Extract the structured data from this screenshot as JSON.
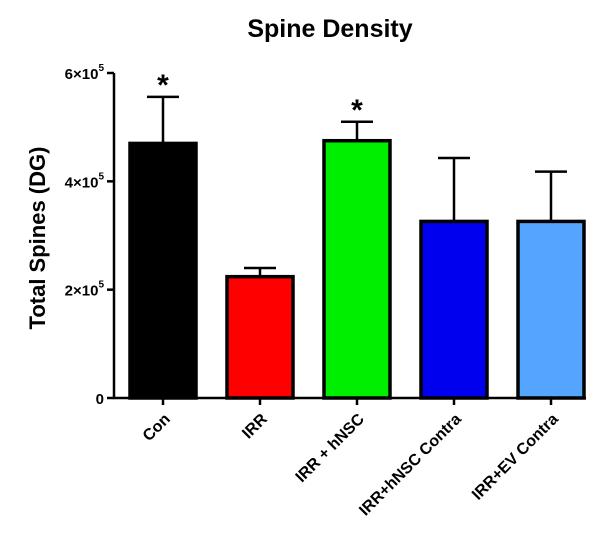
{
  "chart_data": {
    "type": "bar",
    "title": "Spine Density",
    "xlabel": "",
    "ylabel": "Total Spines (DG)",
    "ylim": [
      0,
      600000
    ],
    "yticks": [
      {
        "value": 0,
        "mantissa": "0",
        "exponent": ""
      },
      {
        "value": 200000,
        "mantissa": "2×10",
        "exponent": "5"
      },
      {
        "value": 400000,
        "mantissa": "4×10",
        "exponent": "5"
      },
      {
        "value": 600000,
        "mantissa": "6×10",
        "exponent": "5"
      }
    ],
    "categories": [
      "Con",
      "IRR",
      "IRR + hNSC",
      "IRR+hNSC Contra",
      "IRR+EV Contra"
    ],
    "values": [
      470000,
      224000,
      475000,
      326000,
      326000
    ],
    "error_upper": [
      556000,
      240000,
      510000,
      443000,
      418000
    ],
    "colors": [
      "#000000",
      "#ff0000",
      "#00ee00",
      "#0000ee",
      "#55a5ff"
    ],
    "significance": [
      "*",
      "",
      "*",
      "",
      ""
    ],
    "grid": false,
    "legend": "none"
  }
}
